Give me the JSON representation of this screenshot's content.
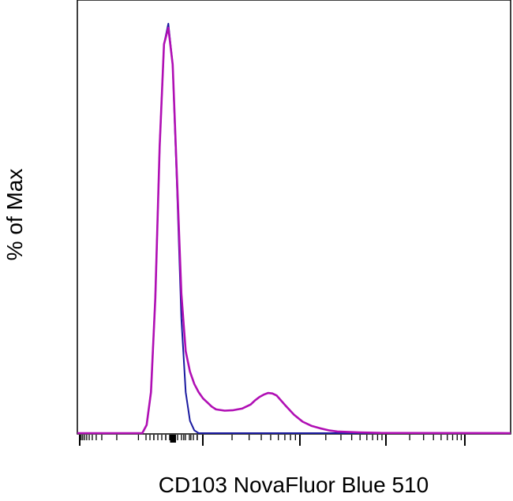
{
  "chart_data": {
    "type": "area",
    "title": "",
    "xlabel": "CD103 NovaFluor Blue 510",
    "ylabel": "% of Max",
    "xscale": "biexponential",
    "xlim": [
      0,
      100
    ],
    "ylim": [
      0,
      100
    ],
    "grid": false,
    "legend": "none",
    "series": [
      {
        "color": "#1a1aa0",
        "x": [
          0,
          15,
          16,
          17,
          18,
          19,
          20,
          21,
          22,
          23,
          24,
          25,
          26,
          27,
          28,
          100
        ],
        "y": [
          0,
          0,
          2,
          10,
          33,
          70,
          95,
          100,
          90,
          60,
          28,
          10,
          3,
          0.7,
          0,
          0
        ]
      },
      {
        "color": "#b00fb4",
        "x": [
          0,
          15,
          16,
          17,
          18,
          19,
          20,
          21,
          22,
          23,
          24,
          25,
          26,
          27,
          28,
          29,
          30,
          31,
          32,
          34,
          36,
          38,
          40,
          41,
          42,
          43,
          44,
          45,
          46,
          47,
          48,
          50,
          52,
          54,
          56,
          58,
          60,
          65,
          70,
          100
        ],
        "y": [
          0,
          0,
          2,
          10,
          33,
          70,
          95,
          99,
          90,
          62,
          34,
          20,
          15,
          12,
          10,
          8.5,
          7.5,
          6.5,
          5.8,
          5.5,
          5.6,
          6,
          7,
          8,
          8.8,
          9.4,
          9.8,
          9.7,
          9.2,
          8,
          6.8,
          4.5,
          2.8,
          1.8,
          1.2,
          0.7,
          0.4,
          0.2,
          0.05,
          0
        ]
      }
    ]
  }
}
